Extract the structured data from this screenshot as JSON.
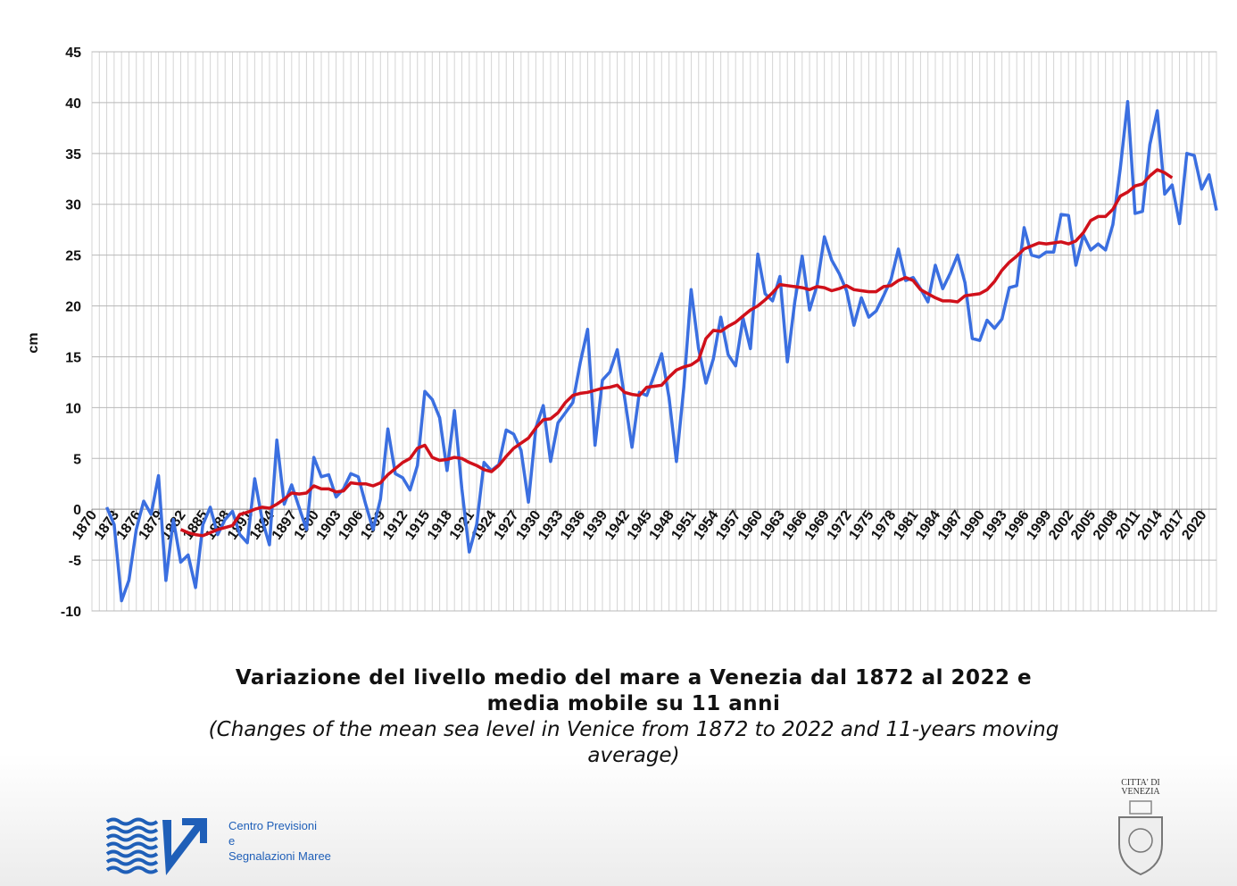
{
  "chart_data": {
    "type": "line",
    "title": "Variazione del livello medio del mare a Venezia dal 1872 al 2022 e media mobile su 11 anni",
    "subtitle": "(Changes of the mean sea level in Venice from 1872 to 2022 and 11-years moving average)",
    "y_label": "cm",
    "x": [
      1870,
      1871,
      1872,
      1873,
      1874,
      1875,
      1876,
      1877,
      1878,
      1879,
      1880,
      1881,
      1882,
      1883,
      1884,
      1885,
      1886,
      1887,
      1888,
      1889,
      1890,
      1891,
      1892,
      1893,
      1894,
      1895,
      1896,
      1897,
      1898,
      1899,
      1900,
      1901,
      1902,
      1903,
      1904,
      1905,
      1906,
      1907,
      1908,
      1909,
      1910,
      1911,
      1912,
      1913,
      1914,
      1915,
      1916,
      1917,
      1918,
      1919,
      1920,
      1921,
      1922,
      1923,
      1924,
      1925,
      1926,
      1927,
      1928,
      1929,
      1930,
      1931,
      1932,
      1933,
      1934,
      1935,
      1936,
      1937,
      1938,
      1939,
      1940,
      1941,
      1942,
      1943,
      1944,
      1945,
      1946,
      1947,
      1948,
      1949,
      1950,
      1951,
      1952,
      1953,
      1954,
      1955,
      1956,
      1957,
      1958,
      1959,
      1960,
      1961,
      1962,
      1963,
      1964,
      1965,
      1966,
      1967,
      1968,
      1969,
      1970,
      1971,
      1972,
      1973,
      1974,
      1975,
      1976,
      1977,
      1978,
      1979,
      1980,
      1981,
      1982,
      1983,
      1984,
      1985,
      1986,
      1987,
      1988,
      1989,
      1990,
      1991,
      1992,
      1993,
      1994,
      1995,
      1996,
      1997,
      1998,
      1999,
      2000,
      2001,
      2002,
      2003,
      2004,
      2005,
      2006,
      2007,
      2008,
      2009,
      2010,
      2011,
      2012,
      2013,
      2014,
      2015,
      2016,
      2017,
      2018,
      2019,
      2020,
      2021,
      2022
    ],
    "series": [
      {
        "color": "#3b6fe0",
        "values": [
          null,
          null,
          0.2,
          -1.5,
          -9,
          -7,
          -2,
          0.8,
          -0.5,
          3.3,
          -7,
          -1,
          -5.2,
          -4.5,
          -7.7,
          -1.5,
          0.2,
          -2.5,
          -1,
          -0.2,
          -2.5,
          -3.3,
          3,
          -1,
          -3.5,
          6.8,
          0.5,
          2.4,
          0.2,
          -2,
          5.1,
          3.2,
          3.4,
          1.2,
          2,
          3.5,
          3.2,
          0.5,
          -2,
          1,
          7.9,
          3.5,
          3.1,
          1.9,
          4.3,
          11.6,
          10.8,
          9,
          3.8,
          9.7,
          2,
          -4.2,
          -1.5,
          4.6,
          3.8,
          4.4,
          7.8,
          7.4,
          5.8,
          0.7,
          8,
          10.2,
          4.7,
          8.5,
          9.5,
          10.5,
          14.4,
          17.7,
          6.3,
          12.7,
          13.5,
          15.7,
          11,
          6.1,
          11.5,
          11.2,
          13.2,
          15.3,
          11,
          4.7,
          12,
          21.6,
          15.8,
          12.4,
          14.8,
          18.9,
          15.2,
          14.1,
          18.8,
          15.8,
          25.1,
          21.2,
          20.5,
          22.9,
          14.5,
          20.4,
          24.9,
          19.6,
          22,
          26.8,
          24.5,
          23.2,
          21.5,
          18.1,
          20.8,
          18.9,
          19.5,
          21,
          22.6,
          25.6,
          22.5,
          22.8,
          21.7,
          20.4,
          24,
          21.7,
          23.2,
          25,
          22.3,
          16.8,
          16.6,
          18.6,
          17.8,
          18.7,
          21.8,
          22,
          27.7,
          25,
          24.8,
          25.3,
          25.3,
          29,
          28.9,
          24,
          27,
          25.5,
          26.1,
          25.5,
          28,
          33.5,
          40.1,
          29.1,
          29.3,
          35.9,
          39.2,
          31,
          31.9,
          28.1,
          35,
          34.8,
          31.5,
          32.9,
          29.4
        ]
      },
      {
        "color": "#d0101a",
        "values": [
          null,
          null,
          null,
          null,
          null,
          null,
          null,
          null,
          null,
          null,
          null,
          null,
          -2.0,
          -2.3,
          -2.5,
          -2.6,
          -2.3,
          -2.0,
          -1.8,
          -1.6,
          -0.5,
          -0.3,
          0,
          0.2,
          0.1,
          0.5,
          1.0,
          1.6,
          1.5,
          1.6,
          2.3,
          2.0,
          2.0,
          1.7,
          1.8,
          2.6,
          2.5,
          2.5,
          2.3,
          2.6,
          3.4,
          4.0,
          4.6,
          5.0,
          6.0,
          6.3,
          5.1,
          4.8,
          4.9,
          5.1,
          5.0,
          4.6,
          4.3,
          3.9,
          3.7,
          4.3,
          5.2,
          6.0,
          6.5,
          7.0,
          8.0,
          8.8,
          8.9,
          9.5,
          10.5,
          11.2,
          11.4,
          11.5,
          11.7,
          11.9,
          12.0,
          12.2,
          11.5,
          11.3,
          11.2,
          12.0,
          12.1,
          12.2,
          13.0,
          13.7,
          14.0,
          14.2,
          14.7,
          16.8,
          17.6,
          17.5,
          18.0,
          18.4,
          19.0,
          19.6,
          20.0,
          20.6,
          21.3,
          22.1,
          22.0,
          21.9,
          21.8,
          21.6,
          21.9,
          21.8,
          21.5,
          21.7,
          22.0,
          21.6,
          21.5,
          21.4,
          21.4,
          21.9,
          22.0,
          22.5,
          22.8,
          22.5,
          21.6,
          21.2,
          20.8,
          20.5,
          20.5,
          20.4,
          21.0,
          21.1,
          21.2,
          21.6,
          22.4,
          23.5,
          24.3,
          24.9,
          25.6,
          25.9,
          26.2,
          26.1,
          26.2,
          26.3,
          26.1,
          26.4,
          27.2,
          28.4,
          28.8,
          28.8,
          29.5,
          30.8,
          31.2,
          31.8,
          32.0,
          32.8,
          33.4,
          33.1,
          32.6,
          null,
          null,
          null,
          null,
          null,
          null
        ]
      }
    ],
    "xlim": [
      1870,
      2022
    ],
    "xticks": [
      1870,
      1873,
      1876,
      1879,
      1882,
      1885,
      1888,
      1891,
      1894,
      1897,
      1900,
      1903,
      1906,
      1909,
      1912,
      1915,
      1918,
      1921,
      1924,
      1927,
      1930,
      1933,
      1936,
      1939,
      1942,
      1945,
      1948,
      1951,
      1954,
      1957,
      1960,
      1963,
      1966,
      1969,
      1972,
      1975,
      1978,
      1981,
      1984,
      1987,
      1990,
      1993,
      1996,
      1999,
      2002,
      2005,
      2008,
      2011,
      2014,
      2017,
      2020
    ],
    "ylim": [
      -10,
      45
    ],
    "yticks": [
      -10,
      -5,
      0,
      5,
      10,
      15,
      20,
      25,
      30,
      35,
      40,
      45
    ],
    "grid": true
  },
  "logos": {
    "cpsm": [
      "Centro Previsioni",
      "e",
      "Segnalazioni Maree"
    ],
    "citta": [
      "CITTA' DI",
      "VENEZIA"
    ]
  }
}
